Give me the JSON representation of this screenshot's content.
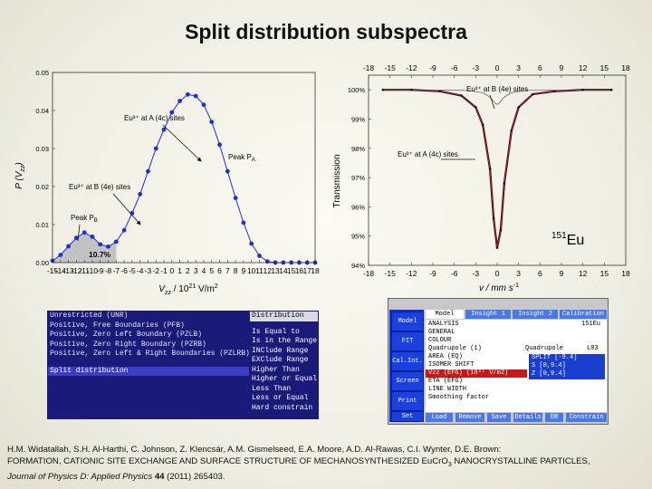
{
  "slide_title": "Split distribution subspectra",
  "chart_data": [
    {
      "type": "area",
      "ylabel": "P (V",
      "ylabel_sub": "zz",
      "ylabel_close": ")",
      "xlabel_prefix": "V",
      "xlabel_sub": "zz",
      "xlabel_suffix": " / 10",
      "xlabel_sup": "21",
      "xlabel_unit": " V/m",
      "xlabel_unit_sup": "2",
      "xlim": [
        -15,
        18
      ],
      "ylim": [
        0,
        0.05
      ],
      "x_ticks": [
        -15,
        -14,
        -13,
        -12,
        -11,
        -10,
        -9,
        -8,
        -7,
        -6,
        -5,
        -4,
        -3,
        -2,
        -1,
        0,
        1,
        2,
        3,
        4,
        5,
        6,
        7,
        8,
        9,
        10,
        11,
        12,
        13,
        14,
        15,
        16,
        17,
        18
      ],
      "y_ticks": [
        "0.00",
        "0.01",
        "0.02",
        "0.03",
        "0.04",
        "0.05"
      ],
      "series": [
        {
          "x": [
            -15,
            -14,
            -13,
            -12,
            -11,
            -10,
            -9,
            -8,
            -7,
            -6,
            -5,
            -4,
            -3,
            -2,
            -1,
            0,
            1,
            2,
            3,
            4,
            5,
            6,
            7,
            8,
            9,
            10,
            11,
            12,
            13,
            14,
            15,
            16,
            17,
            18
          ],
          "y": [
            0.0005,
            0.002,
            0.0043,
            0.0065,
            0.0079,
            0.0068,
            0.0048,
            0.0042,
            0.0055,
            0.0085,
            0.013,
            0.018,
            0.024,
            0.03,
            0.035,
            0.0395,
            0.0425,
            0.0442,
            0.0438,
            0.0415,
            0.037,
            0.031,
            0.024,
            0.017,
            0.0105,
            0.005,
            0.0018,
            0.0003,
            0,
            0,
            0,
            0,
            0,
            0
          ]
        }
      ],
      "annotations": {
        "eu_a_label": "Eu³⁺ at A (4c) sites",
        "peak_a_label": "Peak P",
        "peak_a_sub": "A",
        "eu_b_label": "Eu³⁺ at B (4e) sites",
        "peak_b_label": "Peak P",
        "peak_b_sub": "B",
        "area_pct": "10.7%"
      },
      "area_fill_color": "#c0c0c0",
      "point_color": "#1a2fd8"
    },
    {
      "type": "line",
      "ylabel": "Transmission",
      "xlabel": "v / mm s",
      "xlabel_sup": "-1",
      "xlim": [
        -18,
        18
      ],
      "ylim": [
        94,
        100.5
      ],
      "x_ticks": [
        -18,
        -15,
        -12,
        -9,
        -6,
        -3,
        0,
        3,
        6,
        9,
        12,
        15,
        18
      ],
      "y_ticks": [
        94,
        95,
        96,
        97,
        98,
        99,
        100
      ],
      "y_tick_labels": [
        "94%",
        "95%",
        "96%",
        "97%",
        "98%",
        "99%",
        "100%"
      ],
      "series": [
        {
          "name": "data",
          "x": [
            -16,
            -12,
            -8,
            -5,
            -3,
            -2,
            -1,
            -0.5,
            0,
            0.5,
            1,
            2,
            3,
            5,
            8,
            12,
            16
          ],
          "y": [
            100,
            100,
            99.95,
            99.8,
            99.4,
            98.8,
            97.3,
            95.6,
            94.6,
            95.2,
            96.8,
            98.6,
            99.4,
            99.85,
            99.95,
            100,
            100
          ]
        },
        {
          "name": "fit_total",
          "x": [
            -16,
            -12,
            -8,
            -5,
            -3,
            -2,
            -1,
            -0.5,
            0,
            0.5,
            1,
            2,
            3,
            5,
            8,
            12,
            16
          ],
          "y": [
            100,
            100,
            99.95,
            99.8,
            99.4,
            98.8,
            97.3,
            95.6,
            94.6,
            95.2,
            96.8,
            98.6,
            99.4,
            99.85,
            99.95,
            100,
            100
          ]
        },
        {
          "name": "eu_b",
          "x": [
            -16,
            -4,
            -2,
            -1,
            -0.3,
            0,
            0.3,
            1,
            2,
            4,
            16
          ],
          "y": [
            100,
            99.98,
            99.9,
            99.75,
            99.55,
            99.5,
            99.55,
            99.75,
            99.9,
            99.98,
            100
          ]
        }
      ],
      "annotations": {
        "eu_b_label": "Eu³⁺ at B (4e) sites",
        "eu_a_label": "Eu³⁺ at A (4c) sites",
        "isotope_sup": "151",
        "isotope": "Eu"
      }
    }
  ],
  "dos_window": {
    "items": [
      "Unrestricted (UNR)",
      "Positive, Free Boundaries (PFB)",
      "Positive, Zero Left Boundary (PZLB)",
      "Positive, Zero Right Boundary (PZRB)",
      "Positive, Zero Left & Right Boundaries (PZLRB)"
    ],
    "selected": "Split distribution",
    "menu_title": "Distribution",
    "menu_items": [
      "Is Equal to",
      "Is in the Range",
      "INClude Range",
      "EXClude Range",
      "Higher Than",
      "Higher or Equal",
      "Less Than",
      "Less or Equal",
      "Hard constrain"
    ]
  },
  "model_window": {
    "side_buttons": [
      "Model",
      "FIT",
      "Cal.Int.",
      "Screen",
      "Print",
      "Set"
    ],
    "tabs": [
      "Model",
      "Insight 1",
      "Insight 2",
      "Calibration"
    ],
    "rows": [
      {
        "name": "ANALYSIS",
        "value": "151Eu"
      },
      {
        "name": "GENERAL",
        "value": ""
      },
      {
        "name": "COLOUR",
        "value": ""
      },
      {
        "name": "Quadrupole (1)",
        "value": "Quadrupole",
        "extra": "L03"
      },
      {
        "name": "AREA (EQ)",
        "value": ""
      },
      {
        "name": "ISOMER SHIFT",
        "value": ""
      },
      {
        "name": "Vzz (EFG) (10²¹ V/m2)",
        "value": ""
      },
      {
        "name": "ETA (EFG)",
        "value": ""
      },
      {
        "name": "LINE WIDTH",
        "value": ""
      },
      {
        "name": "Smoothing factor",
        "value": ""
      }
    ],
    "split_box": [
      "SPLIT [-9.4]",
      "S [0,9.4]",
      "Z [0,9.4]"
    ],
    "bottom_buttons": [
      "Load",
      "Remove",
      "Save",
      "Details",
      "DB",
      "Constrain"
    ]
  },
  "caption": {
    "authors": "H.M. Widatallah, S.H. Al-Harthi, C. Johnson, Z. Klencsár, A.M. Gismelseed, E.A. Moore, A.D. Al-Rawas, C.I. Wynter, D.E. Brown:",
    "title_part1": "FORMATION, CATIONIC SITE EXCHANGE AND SURFACE STRUCTURE OF MECHANOSYNTHESIZED EuCrO",
    "title_sub": "3",
    "title_part2": " NANOCRYSTALLINE PARTICLES,",
    "journal": "Journal of Physics D: Applied Physics",
    "volume": "44",
    "rest": " (2011) 265403."
  }
}
